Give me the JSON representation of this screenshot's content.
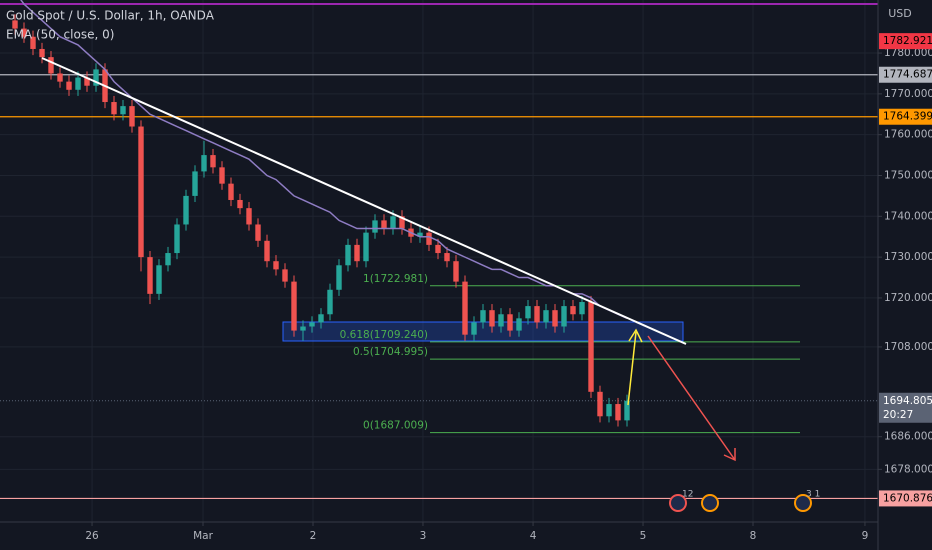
{
  "chart_data": {
    "type": "candlestick",
    "title": "Gold Spot / U.S. Dollar, 1h, OANDA",
    "currency": "USD",
    "up_color": "#26a69a",
    "down_color": "#ef5350",
    "x": [
      0,
      1,
      2,
      3,
      4,
      5,
      6,
      7,
      8,
      9,
      10,
      11,
      12,
      13,
      14,
      15,
      16,
      17,
      18,
      19,
      20,
      21,
      22,
      23,
      24,
      25,
      26,
      27,
      28,
      29,
      30,
      31,
      32,
      33,
      34,
      35,
      36,
      37,
      38,
      39,
      40,
      41,
      42,
      43,
      44,
      45,
      46,
      47,
      48,
      49,
      50,
      51,
      52,
      53,
      54,
      55,
      56,
      57,
      58,
      59,
      60,
      61,
      62,
      63,
      64,
      65,
      66,
      67,
      68
    ],
    "open": [
      1788,
      1786,
      1784,
      1781,
      1779,
      1775,
      1773,
      1771,
      1774,
      1772,
      1776,
      1768,
      1765,
      1767,
      1762,
      1730,
      1721,
      1728,
      1731,
      1738,
      1745,
      1751,
      1755,
      1752,
      1748,
      1744,
      1742,
      1738,
      1734,
      1729,
      1727,
      1724,
      1712,
      1713,
      1714,
      1716,
      1722,
      1728,
      1733,
      1729,
      1736,
      1739,
      1737,
      1740,
      1737,
      1735,
      1736,
      1733,
      1731,
      1729,
      1724,
      1711,
      1714,
      1717,
      1713,
      1716,
      1712,
      1715,
      1718,
      1714,
      1717,
      1713,
      1718,
      1716,
      1719,
      1697,
      1691,
      1694,
      1690
    ],
    "high": [
      1789.5,
      1787.5,
      1785.5,
      1782.5,
      1780.5,
      1776.5,
      1774.5,
      1775.5,
      1775.5,
      1777.5,
      1777.5,
      1769.5,
      1768.5,
      1768.5,
      1763.5,
      1731.5,
      1729.5,
      1732.5,
      1739.5,
      1746.5,
      1752.5,
      1758.5,
      1756.5,
      1753.5,
      1749.5,
      1745.5,
      1743.5,
      1739.5,
      1735.5,
      1730.5,
      1728.5,
      1725.5,
      1714.5,
      1715.5,
      1717.5,
      1723.5,
      1729.5,
      1734.5,
      1734.5,
      1737.5,
      1740.5,
      1740.5,
      1741.5,
      1741.5,
      1738.5,
      1737.5,
      1737.5,
      1734.5,
      1732.5,
      1730.5,
      1725.5,
      1715.5,
      1718.5,
      1718.5,
      1717.5,
      1717.5,
      1716.5,
      1719.5,
      1719.5,
      1718.5,
      1718.5,
      1719.5,
      1719.5,
      1720.5,
      1720.5,
      1698.5,
      1695.5,
      1695.5,
      1696.3
    ],
    "low": [
      1784.5,
      1782.5,
      1779.5,
      1777.5,
      1773.5,
      1771.5,
      1769.5,
      1769.5,
      1770.5,
      1770.5,
      1766.5,
      1763.5,
      1763.5,
      1760.5,
      1726.5,
      1718.5,
      1719.5,
      1726.5,
      1729.5,
      1736.5,
      1743.5,
      1749.5,
      1750.5,
      1746.5,
      1742.5,
      1740.5,
      1736.5,
      1732.5,
      1727.5,
      1725.5,
      1722.5,
      1710.5,
      1709.5,
      1711.5,
      1712.5,
      1714.5,
      1720.5,
      1726.5,
      1727.5,
      1727.5,
      1734.5,
      1735.5,
      1735.5,
      1735.5,
      1733.5,
      1733.5,
      1731.5,
      1729.5,
      1727.5,
      1722.5,
      1709.5,
      1709.5,
      1712.5,
      1711.5,
      1711.5,
      1710.5,
      1710.5,
      1713.5,
      1712.5,
      1712.5,
      1711.5,
      1711.5,
      1714.5,
      1714.5,
      1695.5,
      1689.5,
      1689.5,
      1688.5,
      1688.5
    ],
    "close": [
      1786,
      1784,
      1781,
      1779,
      1775,
      1773,
      1771,
      1774,
      1772,
      1776,
      1768,
      1765,
      1767,
      1762,
      1730,
      1721,
      1728,
      1731,
      1738,
      1745,
      1751,
      1755,
      1752,
      1748,
      1744,
      1742,
      1738,
      1734,
      1729,
      1727,
      1724,
      1712,
      1713,
      1714,
      1716,
      1722,
      1728,
      1733,
      1729,
      1736,
      1739,
      1737,
      1740,
      1737,
      1735,
      1736,
      1733,
      1731,
      1729,
      1724,
      1711,
      1714,
      1717,
      1713,
      1716,
      1712,
      1715,
      1718,
      1714,
      1717,
      1713,
      1718,
      1716,
      1719,
      1697,
      1691,
      1694,
      1690,
      1694.805
    ],
    "ema": {
      "name": "EMA (50, close, 0)",
      "color": "#8e7cc3",
      "values": [
        1795,
        1792,
        1790,
        1788,
        1786,
        1784,
        1783,
        1782,
        1780,
        1778,
        1776,
        1773,
        1771,
        1769,
        1767,
        1765,
        1764,
        1763,
        1762,
        1761,
        1760,
        1759,
        1758,
        1757,
        1756,
        1755,
        1754,
        1752,
        1750,
        1749,
        1747,
        1745,
        1744,
        1743,
        1742,
        1741,
        1739,
        1738,
        1737,
        1737,
        1737,
        1737,
        1737,
        1737,
        1736,
        1735,
        1735,
        1734,
        1732,
        1731,
        1730,
        1729,
        1728,
        1727,
        1727,
        1726,
        1725,
        1725,
        1724,
        1723,
        1723,
        1722,
        1721,
        1721,
        1720,
        1718,
        1717,
        1716,
        1715
      ]
    },
    "xlim": [
      -1.667,
      95.889
    ],
    "xticks": [
      {
        "value": 8.56,
        "label": "26"
      },
      {
        "value": 20.89,
        "label": "Mar"
      },
      {
        "value": 33.11,
        "label": "2"
      },
      {
        "value": 45.33,
        "label": "3"
      },
      {
        "value": 57.56,
        "label": "4"
      },
      {
        "value": 69.78,
        "label": "5"
      },
      {
        "value": 82,
        "label": "8"
      },
      {
        "value": 94.44,
        "label": "9"
      }
    ],
    "ylim": [
      1665.1,
      1793.0
    ],
    "yticks": [
      {
        "value": 1678,
        "label": "1678.000"
      },
      {
        "value": 1686,
        "label": "1686.000"
      },
      {
        "value": 1708,
        "label": "1708.000"
      },
      {
        "value": 1720,
        "label": "1720.000"
      },
      {
        "value": 1730,
        "label": "1730.000"
      },
      {
        "value": 1740,
        "label": "1740.000"
      },
      {
        "value": 1750,
        "label": "1750.000"
      },
      {
        "value": 1760,
        "label": "1760.000"
      },
      {
        "value": 1770,
        "label": "1770.000"
      },
      {
        "value": 1780,
        "label": "1780.000"
      }
    ],
    "grid": true,
    "levels": [
      {
        "value": 1782.921,
        "label": "1782.921",
        "color": "#f23645",
        "line": false
      },
      {
        "value": 1774.687,
        "label": "1774.687",
        "color": "#b2b5be",
        "line": true
      },
      {
        "value": 1764.399,
        "label": "1764.399",
        "color": "#ff9800",
        "line": true
      },
      {
        "value": 1670.876,
        "label": "1670.876",
        "color": "#f7a1a1",
        "line": true
      }
    ],
    "last_price": {
      "value": 1694.805,
      "label": "1694.805",
      "countdown": "20:27",
      "color": "#5b6374"
    },
    "fib_levels": [
      {
        "value": 1722.981,
        "label": "1(1722.981)"
      },
      {
        "value": 1709.24,
        "label": "0.618(1709.240)"
      },
      {
        "value": 1704.995,
        "label": "0.5(1704.995)"
      },
      {
        "value": 1687.009,
        "label": "0(1687.009)"
      }
    ],
    "fib_color": "#4caf50",
    "events": [
      "12",
      "3 1"
    ]
  }
}
